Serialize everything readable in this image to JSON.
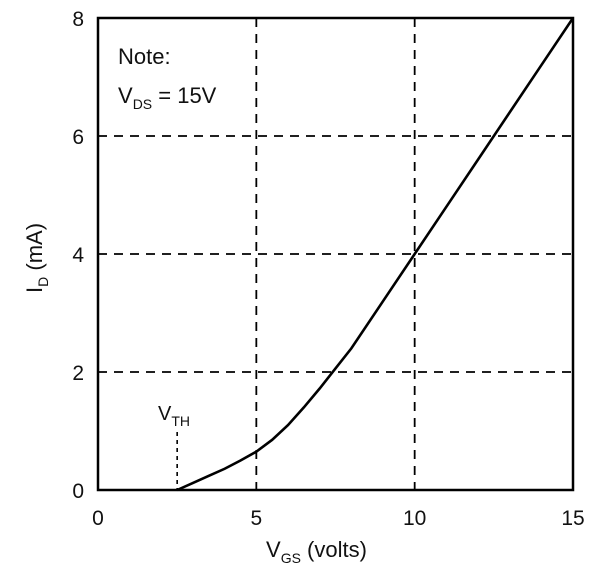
{
  "chart_data": {
    "type": "line",
    "x": [
      2.5,
      3.0,
      3.5,
      4.0,
      4.5,
      5.0,
      5.5,
      6.0,
      6.5,
      7.0,
      7.5,
      8.0,
      9.0,
      10.0,
      11.0,
      12.0,
      13.0,
      14.0,
      15.0
    ],
    "series": [
      {
        "values": [
          0.0,
          0.12,
          0.24,
          0.36,
          0.5,
          0.65,
          0.85,
          1.1,
          1.4,
          1.72,
          2.06,
          2.4,
          3.2,
          4.0,
          4.8,
          5.6,
          6.4,
          7.2,
          8.0
        ]
      }
    ],
    "xlim": [
      0,
      15
    ],
    "ylim": [
      0,
      8
    ],
    "xticks": [
      0,
      5,
      10,
      15
    ],
    "yticks": [
      0,
      2,
      4,
      6,
      8
    ],
    "x_tick_labels": [
      "0",
      "5",
      "10",
      "15"
    ],
    "y_tick_labels": [
      "0",
      "2",
      "4",
      "6",
      "8"
    ],
    "xlabel": {
      "main": "V",
      "sub": "GS",
      "rest": " (volts)"
    },
    "ylabel": {
      "main": "I",
      "sub": "D",
      "rest": " (mA)"
    },
    "grid": "dashed",
    "annotations": {
      "note_line1": "Note:",
      "note_line2_main": "V",
      "note_line2_sub": "DS",
      "note_line2_rest": " = 15V",
      "vth_main": "V",
      "vth_sub": "TH",
      "vth_x": 2.5
    },
    "colors": {
      "line": "#000000",
      "grid": "#000000"
    }
  }
}
